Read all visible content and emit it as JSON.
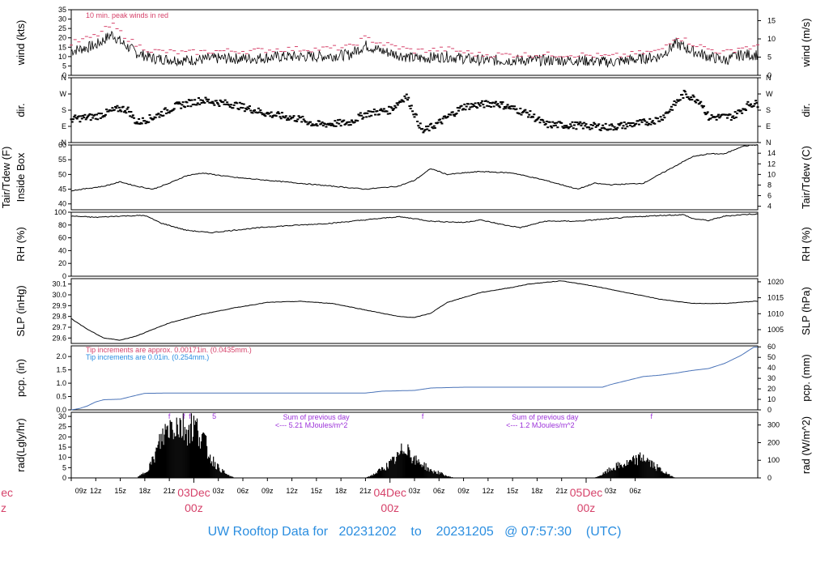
{
  "footer": {
    "prefix": "UW Rooftop Data for",
    "start": "20231202",
    "to": "to",
    "end": "20231205",
    "at": "@ 07:57:30",
    "tz": "(UTC)"
  },
  "colors": {
    "axis": "#000000",
    "accent_red": "#d6426a",
    "accent_blue": "#2b8ee0",
    "accent_purple": "#9b30d9",
    "precip_line": "#4a73b8"
  },
  "chart_data": [
    {
      "id": "wind",
      "type": "line",
      "ylabel": "wind (kts)",
      "ylabel_right": "wind (m/s)",
      "ylim": [
        0,
        35
      ],
      "yticks": [
        0,
        5,
        10,
        15,
        20,
        25,
        30,
        35
      ],
      "yticks_right": [
        0,
        5,
        10,
        15
      ],
      "annotation": "10 min. peak winds in red",
      "series": [
        {
          "values_hours": [
            [
              0,
              13
            ],
            [
              3,
              16
            ],
            [
              5,
              22
            ],
            [
              6,
              18
            ],
            [
              8,
              12
            ],
            [
              10,
              9
            ],
            [
              14,
              8
            ],
            [
              18,
              9
            ],
            [
              22,
              9
            ],
            [
              26,
              10
            ],
            [
              30,
              10
            ],
            [
              34,
              11
            ],
            [
              36,
              16
            ],
            [
              38,
              13
            ],
            [
              42,
              9
            ],
            [
              46,
              10
            ],
            [
              50,
              8
            ],
            [
              54,
              8
            ],
            [
              58,
              8
            ],
            [
              62,
              8
            ],
            [
              66,
              7
            ],
            [
              68,
              8
            ],
            [
              70,
              9
            ],
            [
              72,
              10
            ],
            [
              74,
              17
            ],
            [
              76,
              13
            ],
            [
              78,
              10
            ],
            [
              80,
              8
            ],
            [
              82,
              11
            ]
          ]
        },
        {
          "values_hours": [
            [
              0,
              17
            ],
            [
              3,
              21
            ],
            [
              5,
              27
            ],
            [
              6,
              23
            ],
            [
              8,
              16
            ],
            [
              10,
              13
            ],
            [
              14,
              12
            ],
            [
              18,
              13
            ],
            [
              22,
              13
            ],
            [
              26,
              14
            ],
            [
              30,
              14
            ],
            [
              34,
              15
            ],
            [
              36,
              20
            ],
            [
              38,
              17
            ],
            [
              42,
              13
            ],
            [
              46,
              14
            ],
            [
              50,
              11
            ],
            [
              54,
              11
            ],
            [
              58,
              11
            ],
            [
              62,
              11
            ],
            [
              66,
              10
            ],
            [
              68,
              11
            ],
            [
              70,
              12
            ],
            [
              72,
              13
            ],
            [
              74,
              21
            ],
            [
              76,
              17
            ],
            [
              78,
              14
            ],
            [
              80,
              12
            ],
            [
              82,
              15
            ]
          ]
        }
      ]
    },
    {
      "id": "dir",
      "type": "scatter",
      "ylabel": "dir.",
      "ylabel_right": "dir.",
      "ylim": [
        0,
        360
      ],
      "ytick_labels": [
        "N",
        "E",
        "S",
        "W",
        "N"
      ],
      "values_hours": [
        [
          0,
          130
        ],
        [
          3,
          145
        ],
        [
          6,
          190
        ],
        [
          7,
          180
        ],
        [
          8,
          110
        ],
        [
          10,
          140
        ],
        [
          13,
          205
        ],
        [
          16,
          235
        ],
        [
          20,
          210
        ],
        [
          24,
          160
        ],
        [
          28,
          130
        ],
        [
          30,
          100
        ],
        [
          34,
          110
        ],
        [
          36,
          160
        ],
        [
          39,
          180
        ],
        [
          41,
          260
        ],
        [
          43,
          60
        ],
        [
          45,
          110
        ],
        [
          48,
          200
        ],
        [
          52,
          220
        ],
        [
          56,
          160
        ],
        [
          58,
          100
        ],
        [
          62,
          95
        ],
        [
          66,
          85
        ],
        [
          70,
          110
        ],
        [
          72,
          130
        ],
        [
          73,
          170
        ],
        [
          75,
          270
        ],
        [
          77,
          230
        ],
        [
          78,
          140
        ],
        [
          81,
          145
        ],
        [
          83,
          215
        ]
      ]
    },
    {
      "id": "temp",
      "type": "line",
      "ylabel": "Tair/Tdew (F)",
      "ylabel2": "Inside Box",
      "ylabel_right": "Tair/Tdew (C)",
      "ylim": [
        38,
        60
      ],
      "yticks": [
        40,
        45,
        50,
        55,
        60
      ],
      "yticks_right": [
        4,
        6,
        8,
        10,
        12,
        14
      ],
      "values_hours": [
        [
          0,
          44.5
        ],
        [
          4,
          46
        ],
        [
          6,
          47.5
        ],
        [
          8,
          46
        ],
        [
          10,
          45
        ],
        [
          12,
          47
        ],
        [
          14,
          49.5
        ],
        [
          16,
          50.5
        ],
        [
          20,
          49
        ],
        [
          24,
          48
        ],
        [
          28,
          47
        ],
        [
          32,
          46
        ],
        [
          36,
          45
        ],
        [
          40,
          46
        ],
        [
          42,
          48
        ],
        [
          44,
          52
        ],
        [
          46,
          50
        ],
        [
          50,
          51
        ],
        [
          54,
          50.5
        ],
        [
          58,
          48
        ],
        [
          62,
          45
        ],
        [
          64,
          47
        ],
        [
          66,
          46.5
        ],
        [
          70,
          47
        ],
        [
          72,
          50
        ],
        [
          74,
          53
        ],
        [
          76,
          56
        ],
        [
          78,
          57
        ],
        [
          80,
          57
        ],
        [
          82,
          59.5
        ],
        [
          83.5,
          60
        ]
      ]
    },
    {
      "id": "rh",
      "type": "line",
      "ylabel": "RH (%)",
      "ylabel_right": "RH (%)",
      "ylim": [
        0,
        100
      ],
      "yticks": [
        0,
        20,
        40,
        60,
        80,
        100
      ],
      "values_hours": [
        [
          0,
          94
        ],
        [
          3,
          92
        ],
        [
          6,
          94
        ],
        [
          9,
          95
        ],
        [
          11,
          83
        ],
        [
          14,
          72
        ],
        [
          17,
          68
        ],
        [
          20,
          72
        ],
        [
          24,
          77
        ],
        [
          28,
          80
        ],
        [
          32,
          83
        ],
        [
          36,
          88
        ],
        [
          40,
          93
        ],
        [
          42,
          90
        ],
        [
          44,
          86
        ],
        [
          48,
          84
        ],
        [
          50,
          88
        ],
        [
          53,
          80
        ],
        [
          55,
          76
        ],
        [
          58,
          86
        ],
        [
          62,
          86
        ],
        [
          66,
          90
        ],
        [
          68,
          92
        ],
        [
          72,
          95
        ],
        [
          75,
          96
        ],
        [
          76,
          90
        ],
        [
          78,
          87
        ],
        [
          80,
          94
        ],
        [
          83,
          97
        ]
      ]
    },
    {
      "id": "slp",
      "type": "line",
      "ylabel": "SLP (inHg)",
      "ylabel_right": "SLP (hPa)",
      "ylim": [
        29.55,
        30.15
      ],
      "yticks": [
        29.6,
        29.7,
        29.8,
        29.9,
        30.0,
        30.1
      ],
      "yticks_right": [
        1005,
        1010,
        1015,
        1020
      ],
      "values_hours": [
        [
          0,
          29.78
        ],
        [
          2,
          29.68
        ],
        [
          4,
          29.6
        ],
        [
          6,
          29.58
        ],
        [
          8,
          29.62
        ],
        [
          12,
          29.74
        ],
        [
          16,
          29.82
        ],
        [
          20,
          29.88
        ],
        [
          24,
          29.93
        ],
        [
          28,
          29.94
        ],
        [
          32,
          29.92
        ],
        [
          36,
          29.86
        ],
        [
          40,
          29.8
        ],
        [
          42,
          29.79
        ],
        [
          44,
          29.83
        ],
        [
          46,
          29.93
        ],
        [
          50,
          30.02
        ],
        [
          54,
          30.07
        ],
        [
          56,
          30.1
        ],
        [
          60,
          30.13
        ],
        [
          64,
          30.08
        ],
        [
          68,
          30.02
        ],
        [
          72,
          29.96
        ],
        [
          76,
          29.92
        ],
        [
          80,
          29.92
        ],
        [
          83.5,
          29.94
        ]
      ]
    },
    {
      "id": "pcp",
      "type": "line",
      "ylabel": "pcp. (in)",
      "ylabel_right": "pcp. (mm)",
      "ylim": [
        0,
        2.4
      ],
      "yticks": [
        0.0,
        0.5,
        1.0,
        1.5,
        2.0
      ],
      "yticks_right": [
        0,
        10,
        20,
        30,
        40,
        50,
        60
      ],
      "annotation1": "Tip increments are approx. 0.00171in. (0.0435mm.)",
      "annotation2": "Tip increments are 0.01in. (0.254mm.)",
      "values_hours": [
        [
          0,
          0.0
        ],
        [
          1,
          0.05
        ],
        [
          2,
          0.15
        ],
        [
          3,
          0.3
        ],
        [
          4,
          0.38
        ],
        [
          6,
          0.4
        ],
        [
          8,
          0.55
        ],
        [
          9,
          0.62
        ],
        [
          12,
          0.63
        ],
        [
          24,
          0.63
        ],
        [
          36,
          0.63
        ],
        [
          38,
          0.7
        ],
        [
          42,
          0.73
        ],
        [
          44,
          0.82
        ],
        [
          48,
          0.85
        ],
        [
          60,
          0.85
        ],
        [
          65,
          0.85
        ],
        [
          66,
          0.95
        ],
        [
          68,
          1.1
        ],
        [
          70,
          1.25
        ],
        [
          72,
          1.3
        ],
        [
          74,
          1.38
        ],
        [
          76,
          1.48
        ],
        [
          78,
          1.55
        ],
        [
          80,
          1.75
        ],
        [
          82,
          2.05
        ],
        [
          83.5,
          2.35
        ]
      ]
    },
    {
      "id": "rad",
      "type": "area",
      "ylabel": "rad(Lgly/hr)",
      "ylabel_right": "rad (W/m^2)",
      "ylim": [
        0,
        32
      ],
      "yticks": [
        0,
        5,
        10,
        15,
        20,
        25,
        30
      ],
      "yticks_right": [
        0,
        100,
        200,
        300
      ],
      "annotations": [
        {
          "text": "Sum of previous day",
          "hour": 28
        },
        {
          "text": "<--- 5.21 MJoules/m^2",
          "hour": 28
        },
        {
          "text": "Sum of previous day",
          "hour": 56
        },
        {
          "text": "<--- 1.2 MJoules/m^2",
          "hour": 56
        }
      ],
      "values_hours": [
        [
          8,
          0
        ],
        [
          9,
          3
        ],
        [
          10,
          10
        ],
        [
          11,
          22
        ],
        [
          12,
          30
        ],
        [
          13,
          31
        ],
        [
          14,
          28
        ],
        [
          15,
          30
        ],
        [
          16,
          24
        ],
        [
          17,
          12
        ],
        [
          18,
          6
        ],
        [
          19,
          2
        ],
        [
          20,
          0
        ],
        [
          36,
          0
        ],
        [
          37,
          2
        ],
        [
          38,
          5
        ],
        [
          39,
          8
        ],
        [
          40,
          12
        ],
        [
          41,
          19
        ],
        [
          42,
          10
        ],
        [
          43,
          8
        ],
        [
          44,
          4
        ],
        [
          45,
          3
        ],
        [
          46,
          1
        ],
        [
          47,
          0
        ],
        [
          64,
          0
        ],
        [
          65,
          2
        ],
        [
          66,
          5
        ],
        [
          67,
          7
        ],
        [
          68,
          8
        ],
        [
          69,
          10
        ],
        [
          70,
          12
        ],
        [
          71,
          8
        ],
        [
          72,
          5
        ],
        [
          73,
          2
        ],
        [
          74,
          0
        ]
      ]
    }
  ],
  "xaxis": {
    "hour_ticks": [
      "09z",
      "12z",
      "15z",
      "18z",
      "21z",
      "03z",
      "06z",
      "09z",
      "12z",
      "15z",
      "18z",
      "21z",
      "03z",
      "06z",
      "09z",
      "12z",
      "15z",
      "18z",
      "21z",
      "03z",
      "06z"
    ],
    "hour_tick_positions": [
      0,
      3,
      6,
      9,
      12,
      18,
      21,
      24,
      27,
      30,
      33,
      36,
      42,
      45,
      48,
      51,
      54,
      57,
      60,
      66,
      69
    ],
    "day_labels": [
      {
        "day": "03Dec",
        "hour": "00z",
        "pos": 15
      },
      {
        "day": "04Dec",
        "hour": "00z",
        "pos": 39
      },
      {
        "day": "05Dec",
        "hour": "00z",
        "pos": 63
      }
    ],
    "clipped_day_label": {
      "day": "ec",
      "hour": "z"
    }
  }
}
